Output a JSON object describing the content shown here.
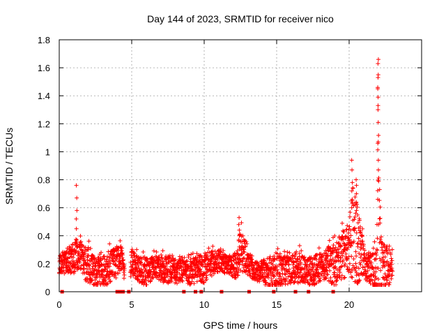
{
  "chart_data": {
    "type": "scatter",
    "title": "Day 144 of 2023, SRMTID for receiver nico",
    "xlabel": "GPS time / hours",
    "ylabel": "SRMTID / TECUs",
    "xlim": [
      0,
      25
    ],
    "ylim": [
      0,
      1.8
    ],
    "xticks": [
      "0",
      "5",
      "10",
      "15",
      "20"
    ],
    "yticks": [
      "0",
      "0.2",
      "0.4",
      "0.6",
      "0.8",
      "1",
      "1.2",
      "1.4",
      "1.6",
      "1.8"
    ],
    "grid": true,
    "marker": "+",
    "color": "#ff0000",
    "series_envelope": {
      "name": "SRMTID",
      "x": [
        0,
        0.5,
        1.0,
        1.5,
        2.0,
        2.5,
        3.0,
        3.5,
        4.0,
        4.3,
        4.7,
        5.0,
        5.5,
        6.0,
        6.5,
        7.0,
        7.5,
        8.0,
        8.5,
        9.0,
        9.5,
        10.0,
        10.5,
        11.0,
        11.5,
        12.0,
        12.3,
        12.5,
        12.8,
        13.0,
        13.5,
        14.0,
        14.5,
        15.0,
        15.5,
        16.0,
        16.5,
        17.0,
        17.5,
        18.0,
        18.5,
        19.0,
        19.5,
        20.0,
        20.3,
        20.5,
        21.0,
        21.5,
        21.9,
        22.0,
        22.2,
        22.5,
        23.0
      ],
      "median": [
        0.2,
        0.22,
        0.25,
        0.26,
        0.18,
        0.15,
        0.13,
        0.18,
        0.22,
        0.26,
        0.0,
        0.22,
        0.16,
        0.14,
        0.18,
        0.17,
        0.15,
        0.14,
        0.15,
        0.14,
        0.16,
        0.17,
        0.2,
        0.22,
        0.2,
        0.18,
        0.2,
        0.3,
        0.25,
        0.2,
        0.15,
        0.14,
        0.12,
        0.13,
        0.15,
        0.16,
        0.18,
        0.15,
        0.14,
        0.18,
        0.2,
        0.18,
        0.25,
        0.32,
        0.42,
        0.35,
        0.22,
        0.15,
        0.13,
        0.3,
        0.2,
        0.15,
        0.18
      ],
      "max": [
        0.3,
        0.35,
        0.42,
        0.4,
        0.38,
        0.3,
        0.3,
        0.35,
        0.38,
        0.4,
        0.0,
        0.35,
        0.3,
        0.28,
        0.3,
        0.3,
        0.3,
        0.28,
        0.26,
        0.27,
        0.3,
        0.32,
        0.33,
        0.33,
        0.3,
        0.29,
        0.36,
        0.53,
        0.4,
        0.32,
        0.25,
        0.26,
        0.3,
        0.33,
        0.3,
        0.3,
        0.35,
        0.28,
        0.3,
        0.33,
        0.36,
        0.4,
        0.5,
        0.58,
        0.95,
        0.8,
        0.4,
        0.3,
        0.4,
        1.66,
        0.5,
        0.42,
        0.3
      ]
    },
    "spikes": [
      {
        "x": 1.2,
        "y": [
          0.76,
          0.67,
          0.58,
          0.52,
          0.45
        ]
      },
      {
        "x": 12.4,
        "y": [
          0.53,
          0.48,
          0.44,
          0.4,
          0.37
        ]
      },
      {
        "x": 20.2,
        "y": [
          0.94,
          0.87,
          0.78,
          0.72,
          0.66,
          0.6
        ]
      },
      {
        "x": 20.5,
        "y": [
          0.8,
          0.76,
          0.7,
          0.64,
          0.58
        ]
      },
      {
        "x": 22.0,
        "y": [
          1.66,
          1.63,
          1.55,
          1.53,
          1.46,
          1.45,
          1.39,
          1.33,
          1.3,
          1.21,
          1.07,
          1.06,
          0.94,
          0.87,
          0.66,
          0.48
        ]
      }
    ],
    "zero_values_x": [
      0.2,
      4.0,
      4.2,
      4.4,
      4.8,
      8.6,
      9.4,
      9.8,
      11.2,
      13.1,
      14.8,
      16.3,
      17.2,
      18.9
    ]
  }
}
